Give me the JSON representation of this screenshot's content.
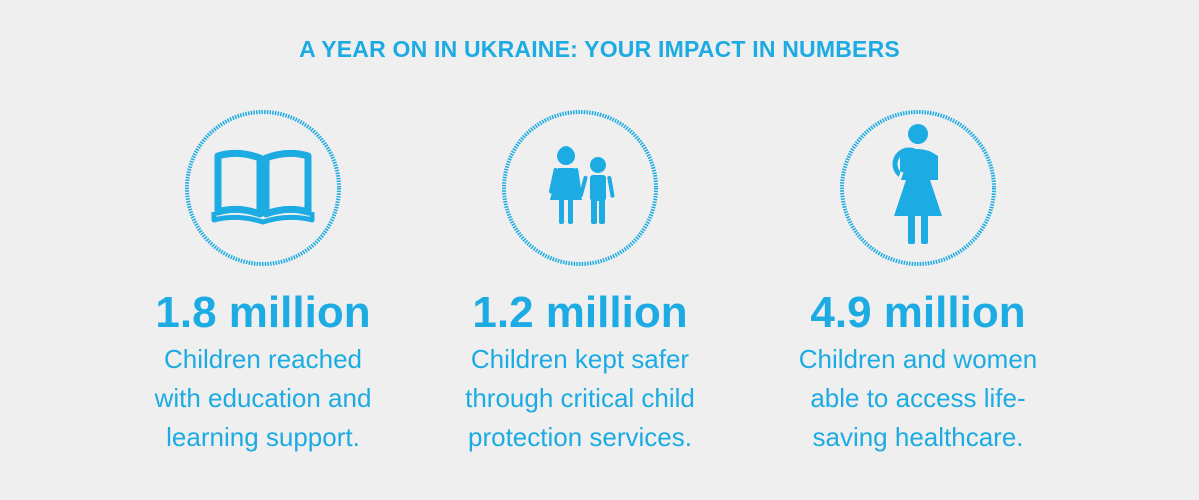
{
  "title": "A YEAR ON IN UKRAINE: YOUR IMPACT IN NUMBERS",
  "accent_color": "#1cabe2",
  "background_color": "#efefef",
  "stats": [
    {
      "icon": "open-book-icon",
      "value": "1.8 million",
      "desc_lines": [
        "Children reached",
        "with education and",
        "learning support."
      ]
    },
    {
      "icon": "children-icon",
      "value": "1.2 million",
      "desc_lines": [
        "Children kept safer",
        "through critical child",
        "protection services."
      ]
    },
    {
      "icon": "mother-and-baby-icon",
      "value": "4.9 million",
      "desc_lines": [
        "Children and women",
        "able to access life-",
        "saving healthcare."
      ]
    }
  ]
}
